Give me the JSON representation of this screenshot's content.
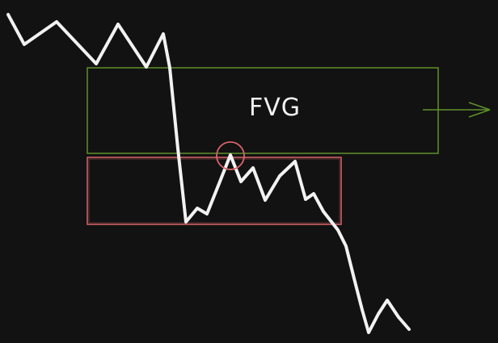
{
  "diagram": {
    "fvg_label": "FVG",
    "colors": {
      "background": "#121212",
      "price_line": "#f2f2f2",
      "fvg_box": "#5f8f2b",
      "fvg_arrow": "#5f8f2b",
      "lower_box": "#d9646b",
      "retest_circle": "#d9646b"
    }
  }
}
